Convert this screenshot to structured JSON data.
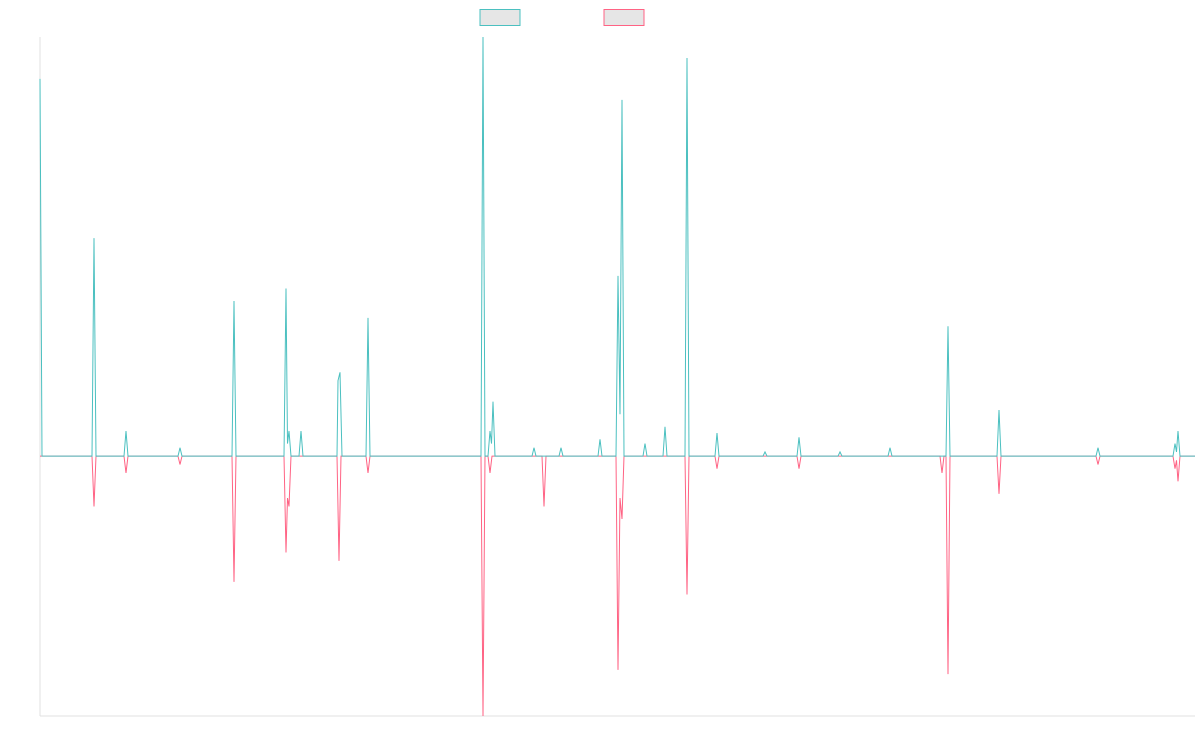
{
  "chart_data": {
    "type": "line",
    "xlim": [
      0,
      1155
    ],
    "ylim": [
      -62,
      100
    ],
    "series": [
      {
        "color": "#4bc0c0",
        "x": [
          0,
          2,
          52,
          54,
          56,
          84,
          86,
          88,
          138,
          140,
          142,
          192,
          194,
          196,
          244,
          246,
          247.5,
          249,
          251,
          259,
          261,
          263,
          297,
          298,
          300,
          302,
          326,
          328,
          330,
          441,
          443,
          445,
          448,
          450,
          451.5,
          453,
          455,
          492,
          494,
          496,
          519,
          521,
          523,
          558,
          560,
          562,
          576,
          578,
          580,
          582,
          584,
          603,
          605,
          607,
          623,
          625,
          627,
          645,
          647,
          649,
          675,
          677,
          679,
          723,
          725,
          727,
          757,
          759,
          761,
          798,
          800,
          802,
          848,
          850,
          852,
          906,
          908,
          910,
          957,
          959,
          961,
          1056,
          1058,
          1060,
          1133,
          1135,
          1136.5,
          1138,
          1140,
          1155
        ],
        "values": [
          90,
          0,
          0,
          52,
          0,
          0,
          6,
          0,
          0,
          2,
          0,
          0,
          37,
          0,
          0,
          40,
          3,
          6,
          0,
          0,
          6,
          0,
          0,
          18,
          20,
          0,
          0,
          33,
          0,
          0,
          100,
          0,
          0,
          6,
          3,
          13,
          0,
          0,
          2,
          0,
          0,
          2,
          0,
          0,
          4,
          0,
          0,
          43,
          10,
          85,
          0,
          0,
          3,
          0,
          0,
          7,
          0,
          0,
          95,
          0,
          0,
          5.5,
          0,
          0,
          1,
          0,
          0,
          4.5,
          0,
          0,
          1,
          0,
          0,
          2,
          0,
          0,
          31,
          0,
          0,
          11,
          0,
          0,
          2,
          0,
          0,
          3,
          1,
          6,
          0,
          0
        ]
      },
      {
        "color": "#ff6384",
        "x": [
          0,
          52,
          54,
          56,
          84,
          86,
          88,
          138,
          140,
          142,
          192,
          194,
          196,
          244,
          246,
          247.5,
          249,
          251,
          297,
          299,
          301,
          326,
          328,
          330,
          441,
          443,
          445,
          448,
          450,
          452,
          502,
          504,
          506,
          576,
          578,
          580,
          582,
          584,
          645,
          647,
          649,
          675,
          677,
          679,
          757,
          759,
          761,
          900,
          902,
          904,
          906,
          908,
          910,
          957,
          959,
          961,
          1056,
          1058,
          1060,
          1133,
          1135,
          1136.5,
          1138,
          1140,
          1155
        ],
        "values": [
          0,
          0,
          -12,
          0,
          0,
          -4,
          0,
          0,
          -2,
          0,
          0,
          -30,
          0,
          0,
          -23,
          -10,
          -12,
          0,
          0,
          -25,
          0,
          0,
          -4,
          0,
          0,
          -62,
          0,
          0,
          -4,
          0,
          0,
          -12,
          0,
          0,
          -51,
          -10,
          -15,
          0,
          0,
          -33,
          0,
          0,
          -3,
          0,
          0,
          -3,
          0,
          0,
          -4,
          0,
          0,
          -52,
          0,
          0,
          -9,
          0,
          0,
          -2,
          0,
          0,
          -3,
          -1,
          -6,
          0,
          0
        ]
      }
    ]
  }
}
